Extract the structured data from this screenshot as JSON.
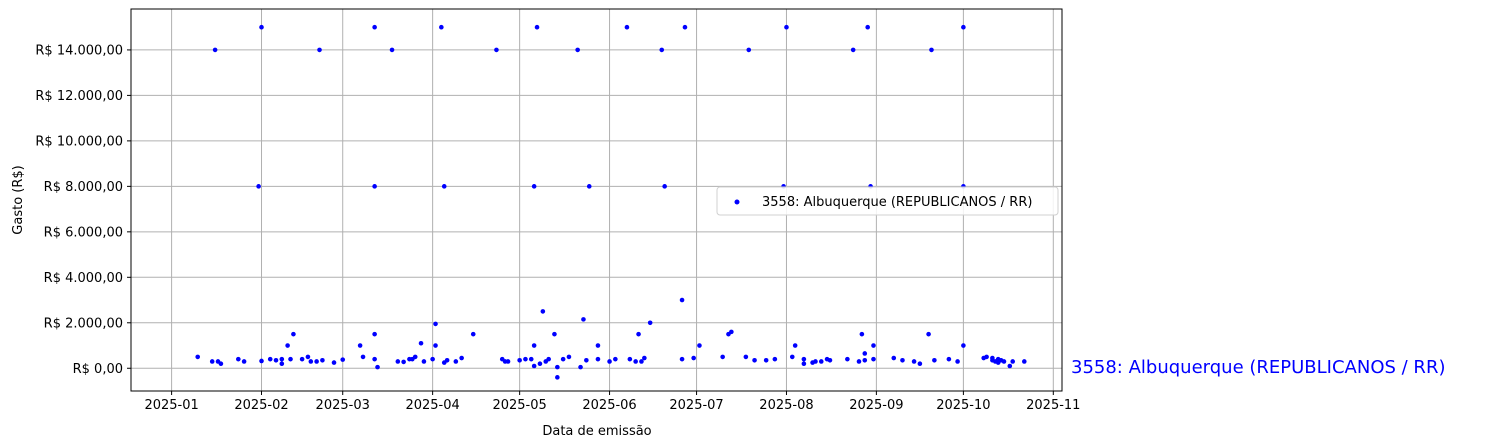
{
  "chart_data": {
    "type": "scatter",
    "xlabel": "Data de emissão",
    "ylabel": "Gasto (R$)",
    "xlim": [
      "2024-12-18",
      "2025-11-04"
    ],
    "ylim": [
      -1000,
      15800
    ],
    "x_ticks": [
      "2025-01",
      "2025-02",
      "2025-03",
      "2025-04",
      "2025-05",
      "2025-06",
      "2025-07",
      "2025-08",
      "2025-09",
      "2025-10",
      "2025-11"
    ],
    "y_ticks": [
      0,
      2000,
      4000,
      6000,
      8000,
      10000,
      12000,
      14000
    ],
    "y_tick_labels": [
      "R$ 0,00",
      "R$ 2.000,00",
      "R$ 4.000,00",
      "R$ 6.000,00",
      "R$ 8.000,00",
      "R$ 10.000,00",
      "R$ 12.000,00",
      "R$ 14.000,00"
    ],
    "grid": true,
    "legend_position": "center-right",
    "series": [
      {
        "name": "3558: Albuquerque (REPUBLICANOS / RR)",
        "color": "#0000ff",
        "points": [
          [
            "2025-01-10",
            500
          ],
          [
            "2025-01-15",
            300
          ],
          [
            "2025-01-16",
            14000
          ],
          [
            "2025-01-17",
            300
          ],
          [
            "2025-01-18",
            200
          ],
          [
            "2025-01-24",
            400
          ],
          [
            "2025-01-26",
            300
          ],
          [
            "2025-01-31",
            8000
          ],
          [
            "2025-02-01",
            15000
          ],
          [
            "2025-02-01",
            320
          ],
          [
            "2025-02-04",
            400
          ],
          [
            "2025-02-06",
            350
          ],
          [
            "2025-02-08",
            200
          ],
          [
            "2025-02-08",
            400
          ],
          [
            "2025-02-10",
            1000
          ],
          [
            "2025-02-11",
            400
          ],
          [
            "2025-02-12",
            1500
          ],
          [
            "2025-02-15",
            400
          ],
          [
            "2025-02-17",
            500
          ],
          [
            "2025-02-18",
            300
          ],
          [
            "2025-02-20",
            300
          ],
          [
            "2025-02-21",
            14000
          ],
          [
            "2025-02-22",
            350
          ],
          [
            "2025-02-26",
            250
          ],
          [
            "2025-03-01",
            380
          ],
          [
            "2025-03-07",
            1000
          ],
          [
            "2025-03-08",
            500
          ],
          [
            "2025-03-12",
            15000
          ],
          [
            "2025-03-12",
            8000
          ],
          [
            "2025-03-12",
            1500
          ],
          [
            "2025-03-12",
            400
          ],
          [
            "2025-03-13",
            50
          ],
          [
            "2025-03-18",
            14000
          ],
          [
            "2025-03-20",
            300
          ],
          [
            "2025-03-22",
            280
          ],
          [
            "2025-03-24",
            400
          ],
          [
            "2025-03-25",
            400
          ],
          [
            "2025-03-26",
            500
          ],
          [
            "2025-03-28",
            1100
          ],
          [
            "2025-03-29",
            300
          ],
          [
            "2025-04-01",
            400
          ],
          [
            "2025-04-02",
            1000
          ],
          [
            "2025-04-02",
            1950
          ],
          [
            "2025-04-04",
            15000
          ],
          [
            "2025-04-05",
            8000
          ],
          [
            "2025-04-05",
            250
          ],
          [
            "2025-04-06",
            350
          ],
          [
            "2025-04-09",
            300
          ],
          [
            "2025-04-11",
            450
          ],
          [
            "2025-04-15",
            1500
          ],
          [
            "2025-04-23",
            14000
          ],
          [
            "2025-04-25",
            400
          ],
          [
            "2025-04-26",
            300
          ],
          [
            "2025-04-27",
            300
          ],
          [
            "2025-05-01",
            350
          ],
          [
            "2025-05-03",
            400
          ],
          [
            "2025-05-05",
            400
          ],
          [
            "2025-05-06",
            1000
          ],
          [
            "2025-05-06",
            8000
          ],
          [
            "2025-05-06",
            100
          ],
          [
            "2025-05-07",
            15000
          ],
          [
            "2025-05-08",
            200
          ],
          [
            "2025-05-09",
            2500
          ],
          [
            "2025-05-10",
            300
          ],
          [
            "2025-05-11",
            400
          ],
          [
            "2025-05-13",
            1500
          ],
          [
            "2025-05-14",
            50
          ],
          [
            "2025-05-14",
            -400
          ],
          [
            "2025-05-16",
            400
          ],
          [
            "2025-05-18",
            500
          ],
          [
            "2025-05-21",
            14000
          ],
          [
            "2025-05-22",
            50
          ],
          [
            "2025-05-23",
            2150
          ],
          [
            "2025-05-24",
            350
          ],
          [
            "2025-05-25",
            8000
          ],
          [
            "2025-05-28",
            1000
          ],
          [
            "2025-05-28",
            400
          ],
          [
            "2025-06-01",
            300
          ],
          [
            "2025-06-03",
            400
          ],
          [
            "2025-06-07",
            15000
          ],
          [
            "2025-06-08",
            400
          ],
          [
            "2025-06-10",
            300
          ],
          [
            "2025-06-11",
            1500
          ],
          [
            "2025-06-12",
            300
          ],
          [
            "2025-06-13",
            450
          ],
          [
            "2025-06-15",
            2000
          ],
          [
            "2025-06-19",
            14000
          ],
          [
            "2025-06-20",
            8000
          ],
          [
            "2025-06-26",
            3000
          ],
          [
            "2025-06-26",
            400
          ],
          [
            "2025-06-27",
            15000
          ],
          [
            "2025-06-30",
            450
          ],
          [
            "2025-07-02",
            1000
          ],
          [
            "2025-07-10",
            500
          ],
          [
            "2025-07-12",
            1500
          ],
          [
            "2025-07-13",
            1600
          ],
          [
            "2025-07-18",
            500
          ],
          [
            "2025-07-19",
            14000
          ],
          [
            "2025-07-21",
            350
          ],
          [
            "2025-07-25",
            350
          ],
          [
            "2025-07-28",
            400
          ],
          [
            "2025-07-31",
            8000
          ],
          [
            "2025-08-01",
            15000
          ],
          [
            "2025-08-03",
            500
          ],
          [
            "2025-08-04",
            1000
          ],
          [
            "2025-08-07",
            200
          ],
          [
            "2025-08-07",
            400
          ],
          [
            "2025-08-10",
            250
          ],
          [
            "2025-08-11",
            300
          ],
          [
            "2025-08-13",
            300
          ],
          [
            "2025-08-15",
            400
          ],
          [
            "2025-08-16",
            350
          ],
          [
            "2025-08-22",
            400
          ],
          [
            "2025-08-24",
            14000
          ],
          [
            "2025-08-26",
            300
          ],
          [
            "2025-08-27",
            1500
          ],
          [
            "2025-08-28",
            650
          ],
          [
            "2025-08-28",
            350
          ],
          [
            "2025-08-29",
            15000
          ],
          [
            "2025-08-30",
            8000
          ],
          [
            "2025-08-31",
            1000
          ],
          [
            "2025-08-31",
            400
          ],
          [
            "2025-09-07",
            450
          ],
          [
            "2025-09-10",
            350
          ],
          [
            "2025-09-14",
            300
          ],
          [
            "2025-09-16",
            200
          ],
          [
            "2025-09-19",
            1500
          ],
          [
            "2025-09-20",
            14000
          ],
          [
            "2025-09-21",
            350
          ],
          [
            "2025-09-26",
            400
          ],
          [
            "2025-09-29",
            300
          ],
          [
            "2025-10-01",
            1000
          ],
          [
            "2025-10-01",
            8000
          ],
          [
            "2025-10-01",
            15000
          ],
          [
            "2025-10-08",
            450
          ],
          [
            "2025-10-09",
            500
          ],
          [
            "2025-10-11",
            450
          ],
          [
            "2025-10-11",
            350
          ],
          [
            "2025-10-12",
            300
          ],
          [
            "2025-10-13",
            400
          ],
          [
            "2025-10-13",
            250
          ],
          [
            "2025-10-14",
            350
          ],
          [
            "2025-10-15",
            300
          ],
          [
            "2025-10-17",
            100
          ],
          [
            "2025-10-18",
            300
          ],
          [
            "2025-10-22",
            300
          ]
        ]
      }
    ],
    "side_annotation": {
      "text": "3558: Albuquerque (REPUBLICANOS / RR)",
      "color": "#0000ff"
    }
  }
}
